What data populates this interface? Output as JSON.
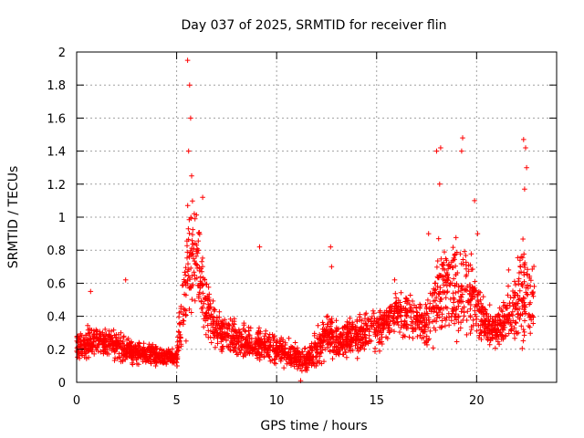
{
  "chart_data": {
    "type": "scatter",
    "title": "Day 037 of 2025, SRMTID for receiver flin",
    "xlabel": "GPS time / hours",
    "ylabel": "SRMTID / TECUs",
    "xlim": [
      0,
      24
    ],
    "ylim": [
      0,
      2
    ],
    "xticks": [
      0,
      5,
      10,
      15,
      20
    ],
    "xtick_labels": [
      "0",
      "5",
      "10",
      "15",
      "20"
    ],
    "yticks": [
      0,
      0.2,
      0.4,
      0.6,
      0.8,
      1,
      1.2,
      1.4,
      1.6,
      1.8,
      2
    ],
    "ytick_labels": [
      "0",
      "0.2",
      "0.4",
      "0.6",
      "0.8",
      "1",
      "1.2",
      "1.4",
      "1.6",
      "1.8",
      "2"
    ],
    "grid": true,
    "marker": "plus",
    "series": [
      {
        "name": "SRMTID",
        "color": "#ff0000",
        "profile": {
          "x": [
            0,
            1,
            2,
            3,
            4,
            5,
            5.3,
            5.6,
            6,
            6.5,
            7,
            8,
            9,
            10,
            11,
            11.5,
            12,
            12.5,
            13,
            14,
            15,
            16,
            17,
            17.5,
            18,
            18.5,
            19,
            19.5,
            20,
            20.5,
            21,
            21.5,
            22,
            22.5,
            22.9
          ],
          "base": [
            0.22,
            0.25,
            0.22,
            0.18,
            0.16,
            0.15,
            0.45,
            0.75,
            0.7,
            0.45,
            0.32,
            0.25,
            0.23,
            0.2,
            0.15,
            0.12,
            0.2,
            0.3,
            0.25,
            0.28,
            0.32,
            0.42,
            0.38,
            0.35,
            0.55,
            0.6,
            0.55,
            0.6,
            0.45,
            0.35,
            0.32,
            0.4,
            0.45,
            0.55,
            0.5
          ],
          "spread": [
            0.1,
            0.12,
            0.1,
            0.08,
            0.07,
            0.06,
            0.3,
            0.45,
            0.35,
            0.2,
            0.14,
            0.12,
            0.12,
            0.1,
            0.09,
            0.08,
            0.12,
            0.15,
            0.13,
            0.13,
            0.14,
            0.15,
            0.14,
            0.15,
            0.35,
            0.3,
            0.35,
            0.3,
            0.2,
            0.13,
            0.13,
            0.2,
            0.3,
            0.4,
            0.25
          ]
        },
        "point_count": 2600,
        "spikes": [
          {
            "x": 0.7,
            "y": 0.55
          },
          {
            "x": 2.45,
            "y": 0.62
          },
          {
            "x": 5.55,
            "y": 1.95
          },
          {
            "x": 5.65,
            "y": 1.8
          },
          {
            "x": 5.7,
            "y": 1.6
          },
          {
            "x": 5.6,
            "y": 1.4
          },
          {
            "x": 5.75,
            "y": 1.25
          },
          {
            "x": 6.3,
            "y": 1.12
          },
          {
            "x": 9.15,
            "y": 0.82
          },
          {
            "x": 11.2,
            "y": 0.01
          },
          {
            "x": 12.7,
            "y": 0.82
          },
          {
            "x": 12.75,
            "y": 0.7
          },
          {
            "x": 15.9,
            "y": 0.62
          },
          {
            "x": 18.0,
            "y": 1.4
          },
          {
            "x": 18.2,
            "y": 1.42
          },
          {
            "x": 18.15,
            "y": 1.2
          },
          {
            "x": 19.3,
            "y": 1.48
          },
          {
            "x": 19.25,
            "y": 1.4
          },
          {
            "x": 19.9,
            "y": 1.1
          },
          {
            "x": 20.05,
            "y": 0.9
          },
          {
            "x": 22.35,
            "y": 1.47
          },
          {
            "x": 22.45,
            "y": 1.42
          },
          {
            "x": 22.5,
            "y": 1.3
          },
          {
            "x": 22.4,
            "y": 1.17
          },
          {
            "x": 21.6,
            "y": 0.68
          },
          {
            "x": 17.6,
            "y": 0.9
          }
        ]
      }
    ]
  }
}
